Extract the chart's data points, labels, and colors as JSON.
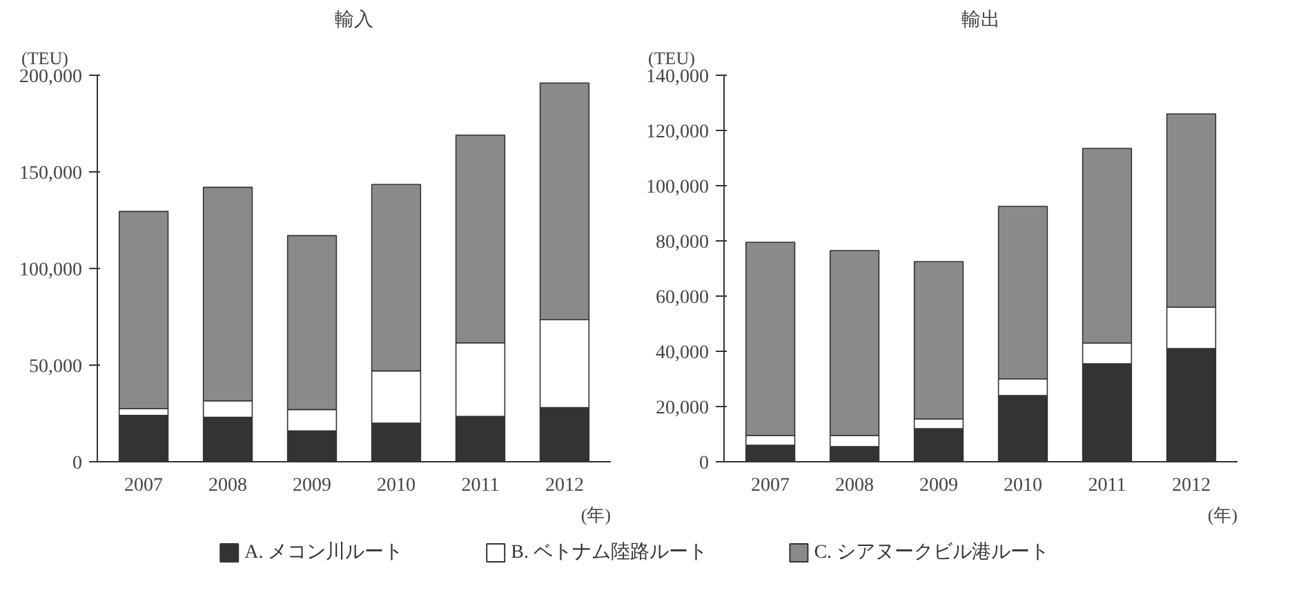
{
  "chart_data": [
    {
      "type": "bar",
      "title": "輸入",
      "ylabel": "(TEU)",
      "xlabel": "(年)",
      "stacked": true,
      "grid": false,
      "legend": "bottom",
      "categories": [
        "2007",
        "2008",
        "2009",
        "2010",
        "2011",
        "2012"
      ],
      "ylim": [
        0,
        200000
      ],
      "yticks": [
        {
          "value": 0,
          "label": "0"
        },
        {
          "value": 50000,
          "label": "50,000"
        },
        {
          "value": 100000,
          "label": "100,000"
        },
        {
          "value": 150000,
          "label": "150,000"
        },
        {
          "value": 200000,
          "label": "200,000"
        }
      ],
      "series": [
        {
          "name": "A. メコン川ルート",
          "color": "#333333",
          "values": [
            24000,
            23000,
            16000,
            20000,
            23500,
            28000
          ]
        },
        {
          "name": "B. ベトナム陸路ルート",
          "color": "#ffffff",
          "values": [
            3500,
            8500,
            11000,
            27000,
            38000,
            45500
          ]
        },
        {
          "name": "C. シアヌークビル港ルート",
          "color": "#8a8a8a",
          "values": [
            102000,
            110500,
            90000,
            96500,
            107500,
            122500
          ]
        }
      ]
    },
    {
      "type": "bar",
      "title": "輸出",
      "ylabel": "(TEU)",
      "xlabel": "(年)",
      "stacked": true,
      "grid": false,
      "categories": [
        "2007",
        "2008",
        "2009",
        "2010",
        "2011",
        "2012"
      ],
      "ylim": [
        0,
        140000
      ],
      "yticks": [
        {
          "value": 0,
          "label": "0"
        },
        {
          "value": 20000,
          "label": "20,000"
        },
        {
          "value": 40000,
          "label": "40,000"
        },
        {
          "value": 60000,
          "label": "60,000"
        },
        {
          "value": 80000,
          "label": "80,000"
        },
        {
          "value": 100000,
          "label": "100,000"
        },
        {
          "value": 120000,
          "label": "120,000"
        },
        {
          "value": 140000,
          "label": "140,000"
        }
      ],
      "series": [
        {
          "color": "#333333",
          "values": [
            6000,
            5500,
            12000,
            24000,
            35500,
            41000
          ]
        },
        {
          "color": "#ffffff",
          "values": [
            3500,
            4000,
            3500,
            6000,
            7500,
            15000
          ]
        },
        {
          "color": "#8a8a8a",
          "values": [
            70000,
            67000,
            57000,
            62500,
            70500,
            70000
          ]
        }
      ]
    }
  ]
}
